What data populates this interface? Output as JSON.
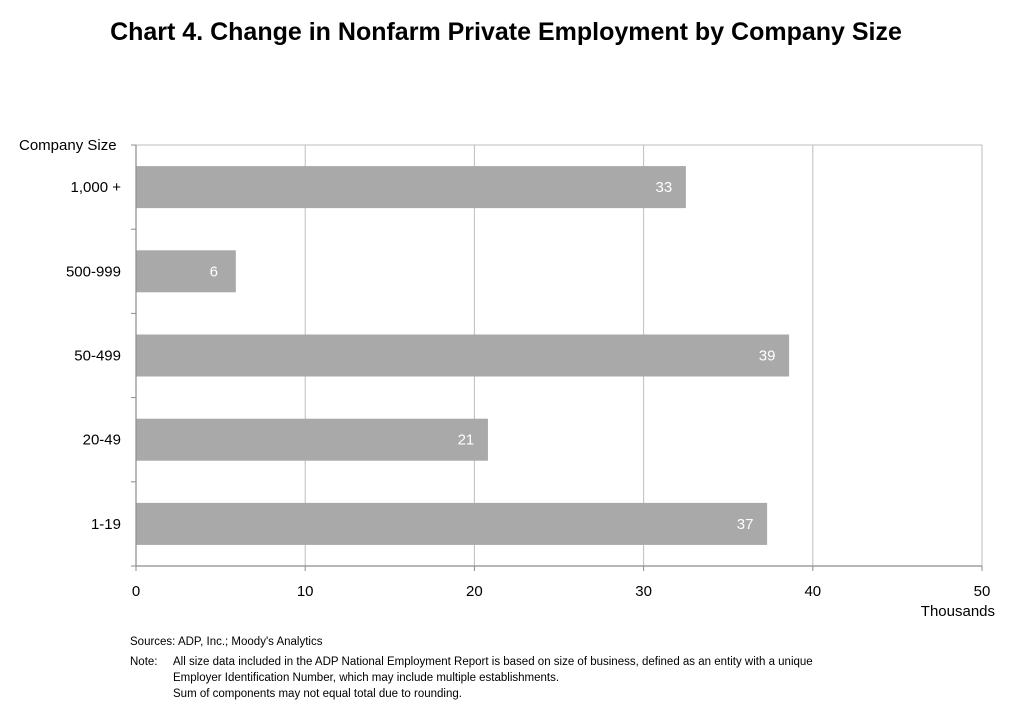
{
  "chart_data": {
    "type": "bar",
    "orientation": "horizontal",
    "title": "Chart 4. Change in Nonfarm Private Employment by Company Size",
    "ylabel": "Company Size",
    "xlabel": "Thousands",
    "categories": [
      "1,000 +",
      "500-999",
      "50-499",
      "20-49",
      "1-19"
    ],
    "values": [
      32.5,
      5.9,
      38.6,
      20.8,
      37.3
    ],
    "data_labels": [
      "33",
      "6",
      "39",
      "21",
      "37"
    ],
    "xlim": [
      0,
      50
    ],
    "xticks": [
      0,
      10,
      20,
      30,
      40,
      50
    ],
    "grid": true,
    "colors": {
      "bar": "#a9a9a9",
      "grid": "#bdbdbd",
      "axis": "#8c8c8c",
      "data_label": "#ffffff"
    }
  },
  "notes": {
    "sources": "Sources: ADP, Inc.; Moody's Analytics",
    "note_label": "Note:",
    "note_lines": [
      "All size data included in the ADP National Employment Report is based on size of business, defined as an entity with a unique",
      "Employer Identification Number, which may include multiple establishments.",
      "Sum of components may not equal total due to rounding."
    ]
  }
}
